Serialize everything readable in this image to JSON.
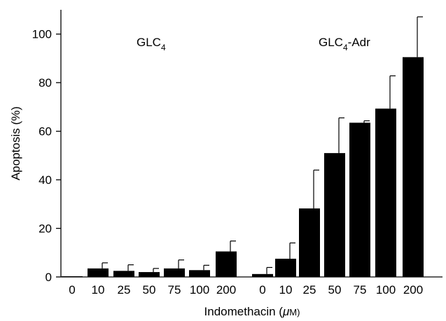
{
  "chart_data": {
    "type": "bar",
    "xlabel_prefix": "Indomethacin (",
    "xlabel_unit_mu": "μ",
    "xlabel_unit_rest": "M)",
    "ylabel": "Apoptosis (%)",
    "ylim": [
      0,
      110
    ],
    "yticks": [
      "0",
      "20",
      "40",
      "60",
      "80",
      "100"
    ],
    "grid": false,
    "legend": "none",
    "bar_color": "#000000",
    "groups": [
      {
        "label_main": "GLC",
        "label_sub": "4",
        "label_suffix": "",
        "categories": [
          "0",
          "10",
          "25",
          "50",
          "75",
          "100",
          "200"
        ],
        "values": [
          0,
          3.5,
          2.5,
          2,
          3.5,
          2.8,
          10.5
        ],
        "errors": [
          0,
          2.3,
          2.5,
          1.5,
          3.5,
          2,
          4.3
        ]
      },
      {
        "label_main": "GLC",
        "label_sub": "4",
        "label_suffix": "-Adr",
        "categories": [
          "0",
          "10",
          "25",
          "50",
          "75",
          "100",
          "200"
        ],
        "values": [
          1.2,
          7.5,
          28.2,
          51,
          63.5,
          69.3,
          90.5
        ],
        "errors": [
          2.7,
          6.5,
          15.8,
          14.5,
          0.8,
          13.5,
          16.6
        ]
      }
    ]
  }
}
